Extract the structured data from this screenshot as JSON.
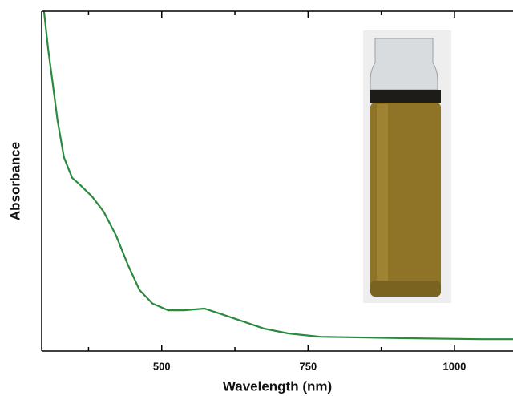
{
  "chart_data": {
    "type": "line",
    "x_label": "Wavelength (nm)",
    "y_label": "Absorbance",
    "x": [
      299,
      306,
      313,
      322,
      333,
      347,
      360,
      381,
      401,
      422,
      442,
      462,
      484,
      511,
      538,
      573,
      600,
      634,
      675,
      716,
      771,
      908,
      1045,
      1100
    ],
    "series": [
      {
        "color": "#2b8a3e",
        "values": [
          1.0,
          0.89,
          0.8,
          0.68,
          0.57,
          0.51,
          0.49,
          0.455,
          0.41,
          0.34,
          0.255,
          0.18,
          0.14,
          0.12,
          0.12,
          0.125,
          0.11,
          0.09,
          0.066,
          0.052,
          0.042,
          0.038,
          0.035,
          0.035
        ]
      }
    ],
    "xlim": [
      295,
      1100
    ],
    "ylim": [
      0,
      1
    ],
    "xticks": [
      500,
      750,
      1000
    ],
    "xminorticks": [
      375,
      625,
      875
    ]
  }
}
